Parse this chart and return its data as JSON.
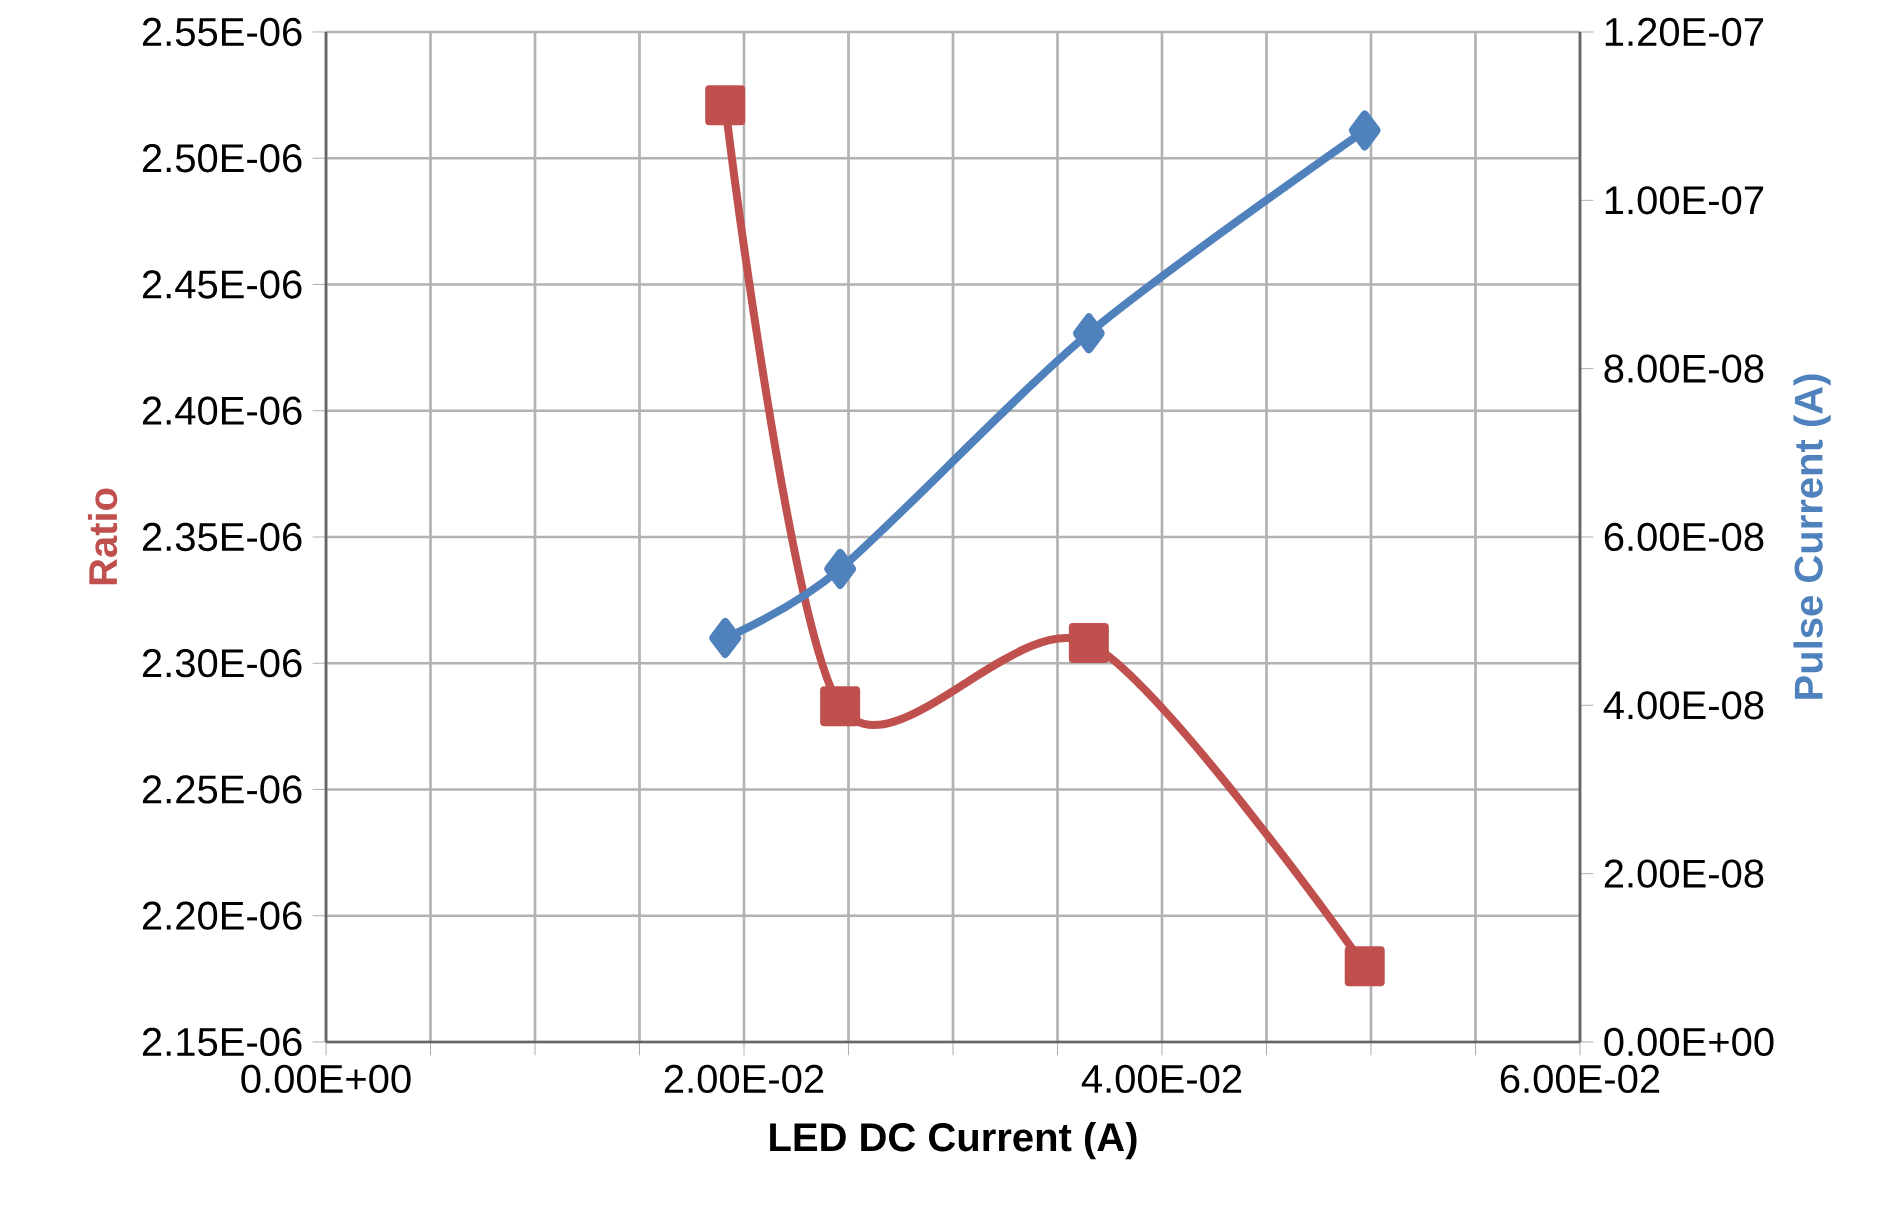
{
  "chart_data": {
    "type": "line",
    "xlabel": "LED DC Current (A)",
    "ylabel": "Ratio",
    "y2label": "Pulse Current (A)",
    "x": [
      0.0191,
      0.0246,
      0.0365,
      0.0497
    ],
    "xlim": [
      0,
      0.06
    ],
    "xticks": [
      {
        "value": 0,
        "label": "0.00E+00"
      },
      {
        "value": 0.005,
        "label": null
      },
      {
        "value": 0.01,
        "label": null
      },
      {
        "value": 0.015,
        "label": null
      },
      {
        "value": 0.02,
        "label": "2.00E-02"
      },
      {
        "value": 0.025,
        "label": null
      },
      {
        "value": 0.03,
        "label": null
      },
      {
        "value": 0.035,
        "label": null
      },
      {
        "value": 0.04,
        "label": "4.00E-02"
      },
      {
        "value": 0.045,
        "label": null
      },
      {
        "value": 0.05,
        "label": null
      },
      {
        "value": 0.055,
        "label": null
      },
      {
        "value": 0.06,
        "label": "6.00E-02"
      }
    ],
    "ylim": [
      2.15e-06,
      2.55e-06
    ],
    "yticks": [
      {
        "value": 2.15e-06,
        "label": "2.15E-06"
      },
      {
        "value": 2.2e-06,
        "label": "2.20E-06"
      },
      {
        "value": 2.25e-06,
        "label": "2.25E-06"
      },
      {
        "value": 2.3e-06,
        "label": "2.30E-06"
      },
      {
        "value": 2.35e-06,
        "label": "2.35E-06"
      },
      {
        "value": 2.4e-06,
        "label": "2.40E-06"
      },
      {
        "value": 2.45e-06,
        "label": "2.45E-06"
      },
      {
        "value": 2.5e-06,
        "label": "2.50E-06"
      },
      {
        "value": 2.55e-06,
        "label": "2.55E-06"
      }
    ],
    "y2lim": [
      0,
      1.2e-07
    ],
    "y2ticks": [
      {
        "value": 0,
        "label": "0.00E+00"
      },
      {
        "value": 2e-08,
        "label": "2.00E-08"
      },
      {
        "value": 4e-08,
        "label": "4.00E-08"
      },
      {
        "value": 6e-08,
        "label": "6.00E-08"
      },
      {
        "value": 8e-08,
        "label": "8.00E-08"
      },
      {
        "value": 1e-07,
        "label": "1.00E-07"
      },
      {
        "value": 1.2e-07,
        "label": "1.20E-07"
      }
    ],
    "grid": true,
    "series": [
      {
        "color": "#c0504d",
        "marker": "square",
        "values": [
          2.521e-06,
          2.283e-06,
          2.308e-06,
          2.18e-06
        ]
      },
      {
        "color": "#4f81bd",
        "marker": "diamond",
        "axis": "y2",
        "values": [
          4.8e-08,
          5.62e-08,
          8.42e-08,
          1.083e-07
        ]
      }
    ]
  }
}
